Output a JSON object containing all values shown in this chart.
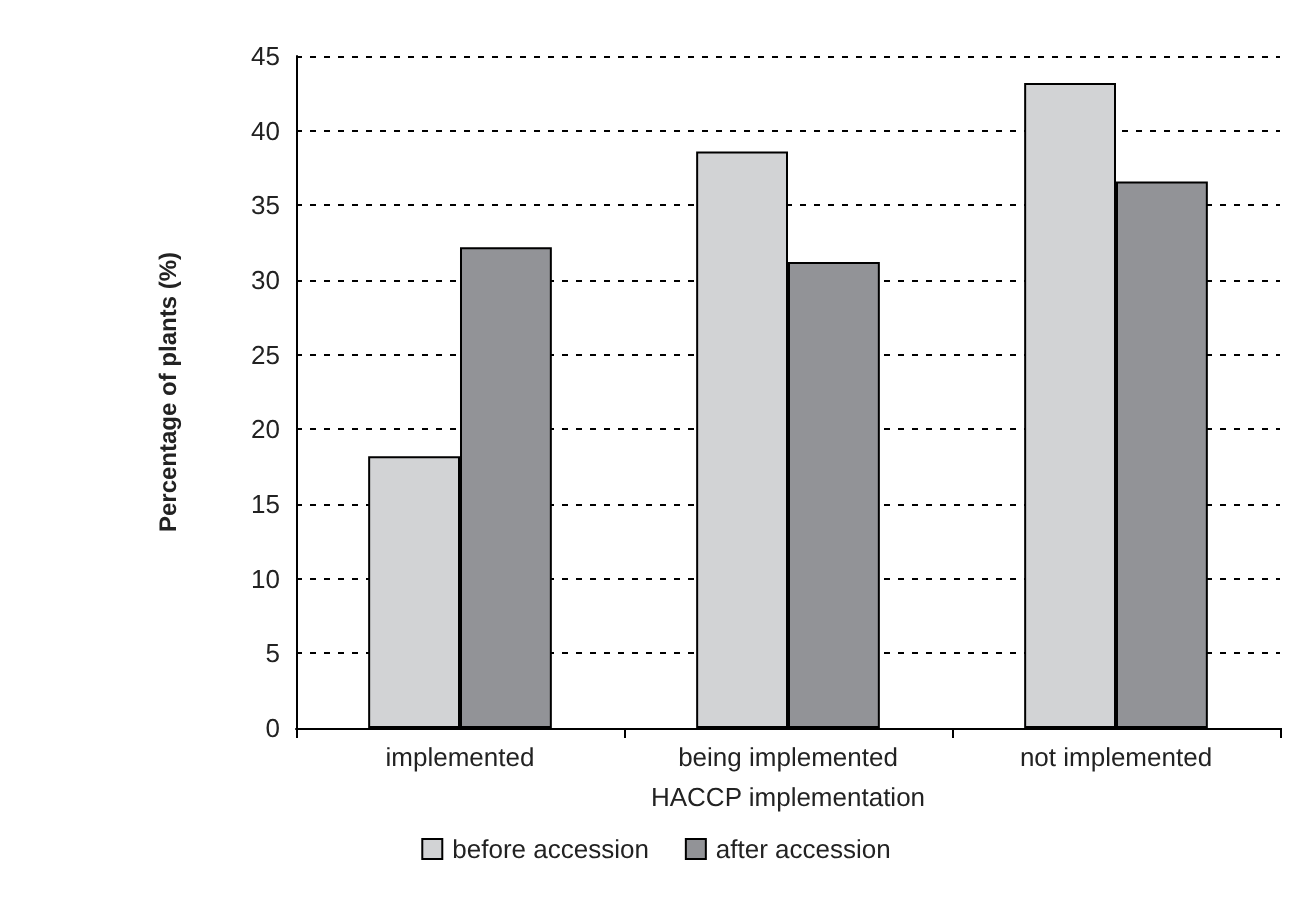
{
  "chart_data": {
    "type": "bar",
    "xlabel": "HACCP implementation",
    "ylabel": "Percentage of plants (%)",
    "categories": [
      "implemented",
      "being implemented",
      "not implemented"
    ],
    "series": [
      {
        "name": "before accession",
        "color": "#d2d3d5",
        "values": [
          18.2,
          38.6,
          43.2
        ]
      },
      {
        "name": "after accession",
        "color": "#929397",
        "values": [
          32.2,
          31.2,
          36.6
        ]
      }
    ],
    "ylim": [
      0,
      45
    ],
    "yticks": [
      0,
      5,
      10,
      15,
      20,
      25,
      30,
      35,
      40,
      45
    ],
    "grid": "y",
    "legend": "bottom"
  }
}
